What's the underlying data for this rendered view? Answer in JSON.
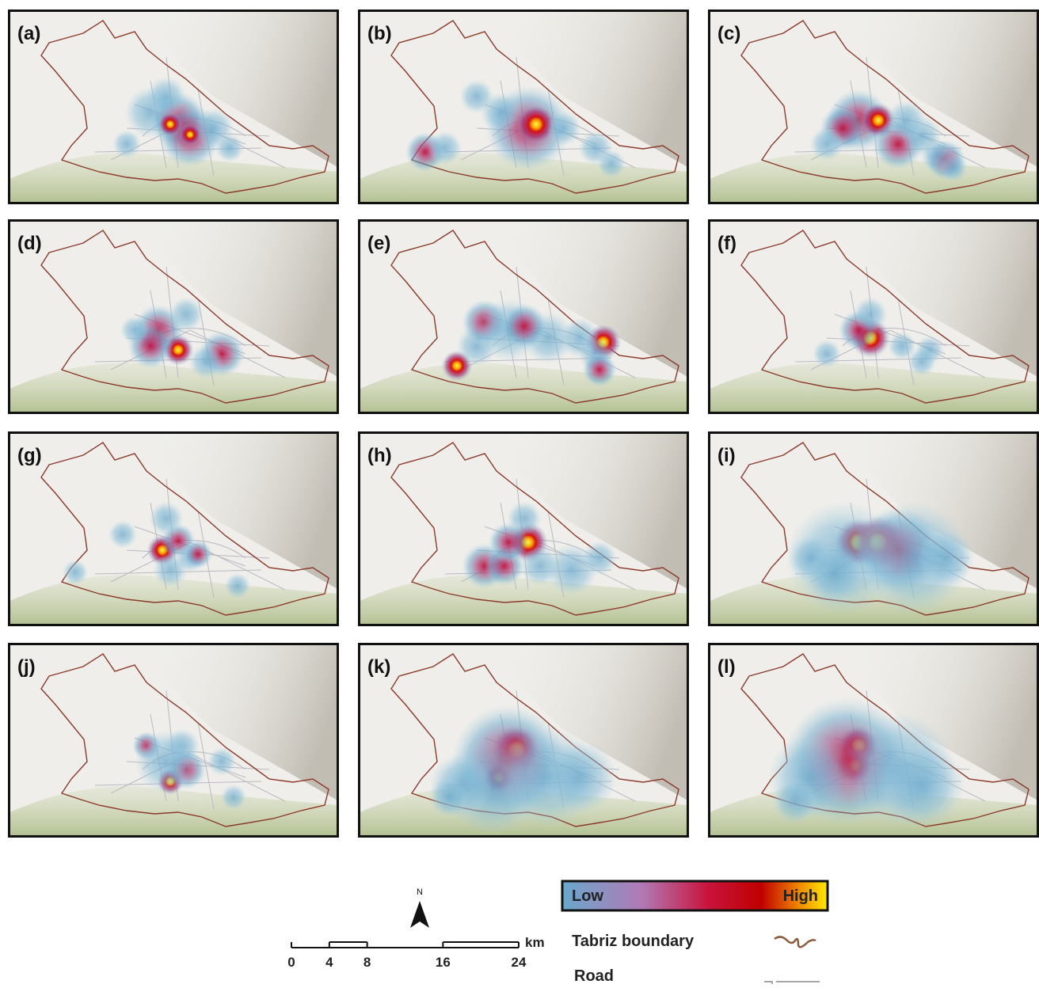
{
  "panels": [
    {
      "label": "(a)"
    },
    {
      "label": "(b)"
    },
    {
      "label": "(c)"
    },
    {
      "label": "(d)"
    },
    {
      "label": "(e)"
    },
    {
      "label": "(f)"
    },
    {
      "label": "(g)"
    },
    {
      "label": "(h)"
    },
    {
      "label": "(i)"
    },
    {
      "label": "(j)"
    },
    {
      "label": "(k)"
    },
    {
      "label": "(l)"
    }
  ],
  "legend": {
    "low": "Low",
    "high": "High",
    "boundary": "Tabriz boundary",
    "road": "Road"
  },
  "scale": {
    "ticks": [
      0,
      4,
      8,
      16,
      24
    ],
    "unit": "km"
  },
  "north": "N"
}
